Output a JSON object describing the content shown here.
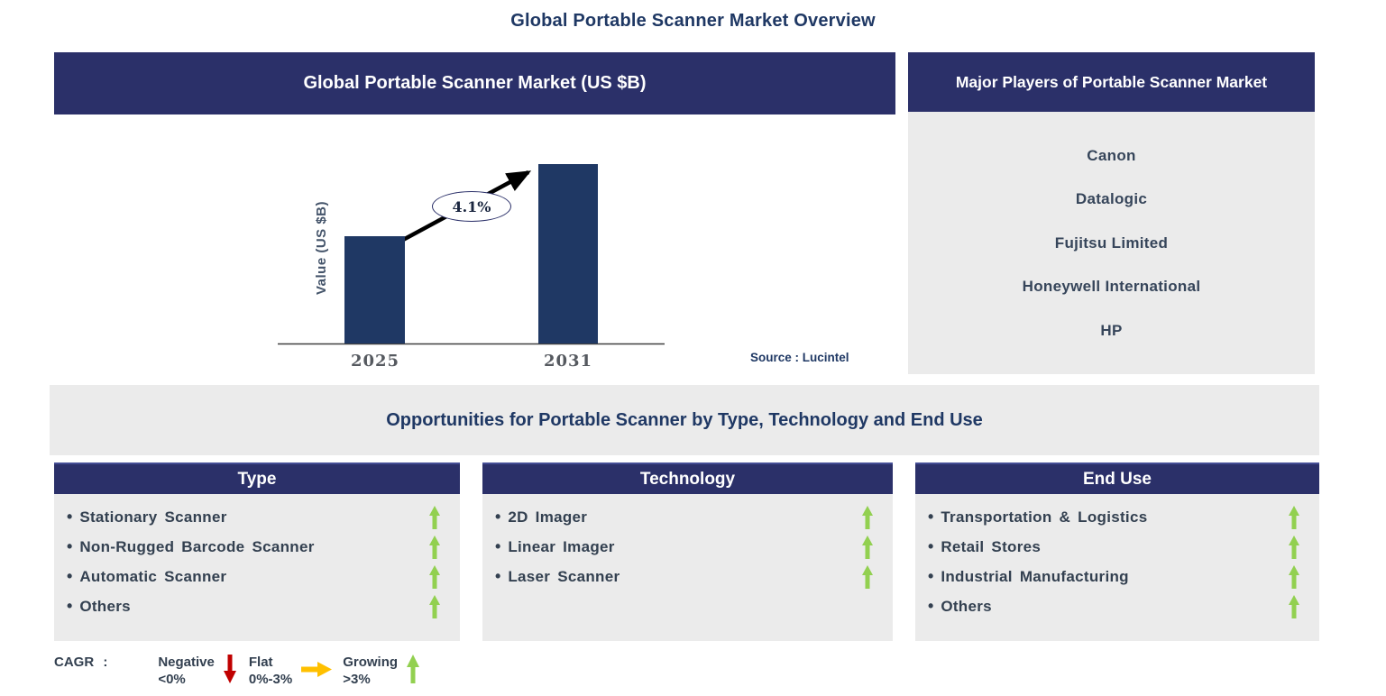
{
  "page_title": "Global Portable Scanner Market Overview",
  "colors": {
    "header_navy": "#2B3069",
    "bar_navy": "#1F3864",
    "panel_gray": "#EBEBEB",
    "title_blue": "#1F3864",
    "text_slate": "#334050",
    "negative_red": "#C00000",
    "flat_yellow": "#FFC000",
    "growing_green": "#92D050"
  },
  "market_chart_panel": {
    "header": "Global Portable Scanner Market (US $B)",
    "source": "Source : Lucintel"
  },
  "chart_data": {
    "type": "bar",
    "title": "Global Portable Scanner Market (US $B)",
    "xlabel": "",
    "ylabel": "Value (US $B)",
    "categories": [
      "2025",
      "2031"
    ],
    "values_relative": [
      0.6,
      1.0
    ],
    "cagr_label": "4.1%",
    "legend_position": "none",
    "grid": false,
    "source": "Source : Lucintel"
  },
  "major_players": {
    "header": "Major Players of Portable Scanner Market",
    "players": [
      "Canon",
      "Datalogic",
      "Fujitsu Limited",
      "Honeywell International",
      "HP"
    ]
  },
  "opportunities": {
    "title": "Opportunities for Portable Scanner by Type, Technology and End Use",
    "columns": [
      {
        "header": "Type",
        "items": [
          {
            "label": "Stationary Scanner",
            "trend": "growing"
          },
          {
            "label": "Non-Rugged Barcode Scanner",
            "trend": "growing"
          },
          {
            "label": "Automatic Scanner",
            "trend": "growing"
          },
          {
            "label": "Others",
            "trend": "growing"
          }
        ]
      },
      {
        "header": "Technology",
        "items": [
          {
            "label": "2D Imager",
            "trend": "growing"
          },
          {
            "label": "Linear Imager",
            "trend": "growing"
          },
          {
            "label": "Laser Scanner",
            "trend": "growing"
          }
        ]
      },
      {
        "header": "End Use",
        "items": [
          {
            "label": "Transportation & Logistics",
            "trend": "growing"
          },
          {
            "label": "Retail Stores",
            "trend": "growing"
          },
          {
            "label": "Industrial Manufacturing",
            "trend": "growing"
          },
          {
            "label": "Others",
            "trend": "growing"
          }
        ]
      }
    ]
  },
  "legend": {
    "label": "CAGR :",
    "entries": [
      {
        "name": "Negative",
        "range": "<0%",
        "direction": "down",
        "color": "#C00000"
      },
      {
        "name": "Flat",
        "range": "0%-3%",
        "direction": "right",
        "color": "#FFC000"
      },
      {
        "name": "Growing",
        "range": ">3%",
        "direction": "up",
        "color": "#92D050"
      }
    ]
  }
}
